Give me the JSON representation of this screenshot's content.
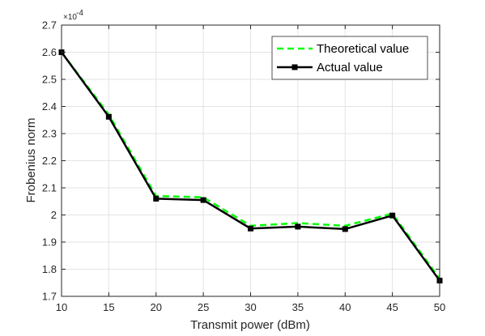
{
  "chart_data": {
    "type": "line",
    "xlabel": "Transmit power (dBm)",
    "ylabel": "Frobenius norm",
    "y_exponent": "×10",
    "y_exponent_power": "-4",
    "xlim": [
      10,
      50
    ],
    "ylim": [
      1.7,
      2.7
    ],
    "x_ticks": [
      10,
      15,
      20,
      25,
      30,
      35,
      40,
      45,
      50
    ],
    "y_ticks": [
      1.7,
      1.8,
      1.9,
      2.0,
      2.1,
      2.2,
      2.3,
      2.4,
      2.5,
      2.6,
      2.7
    ],
    "y_tick_labels": [
      "1.7",
      "1.8",
      "1.9",
      "2",
      "2.1",
      "2.2",
      "2.3",
      "2.4",
      "2.5",
      "2.6",
      "2.7"
    ],
    "grid": true,
    "legend_position": "top-right",
    "x": [
      10,
      15,
      20,
      25,
      30,
      35,
      40,
      45,
      50
    ],
    "series": [
      {
        "name": "Theoretical value",
        "style": "dashed",
        "color": "#00ff00",
        "values": [
          2.6,
          2.37,
          2.07,
          2.065,
          1.96,
          1.97,
          1.96,
          2.005,
          1.765
        ]
      },
      {
        "name": "Actual value",
        "style": "solid-square-markers",
        "color": "#000000",
        "values": [
          2.6,
          2.362,
          2.06,
          2.055,
          1.95,
          1.957,
          1.948,
          1.998,
          1.758
        ]
      }
    ]
  }
}
